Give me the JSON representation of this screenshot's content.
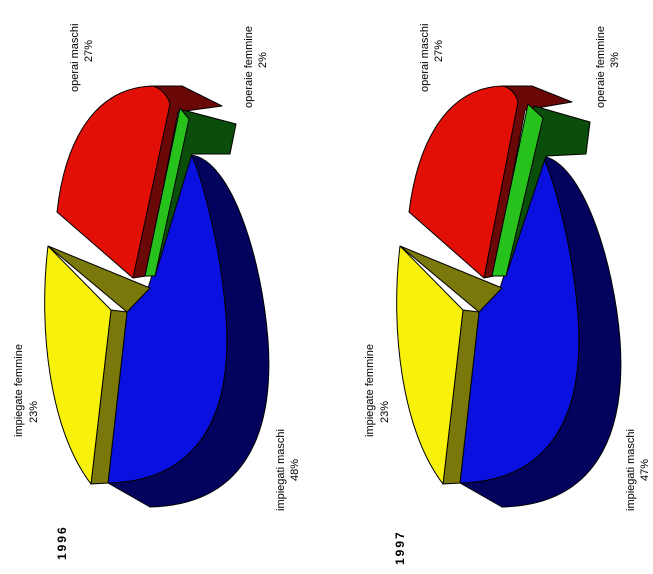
{
  "chart_data": [
    {
      "type": "pie",
      "title": "1996",
      "slices": [
        {
          "label": "impiegati maschi",
          "value": 48,
          "value_label": "48%",
          "color": "#0a10e0",
          "side": "#03035e"
        },
        {
          "label": "impiegate femmine",
          "value": 23,
          "value_label": "23%",
          "color": "#f8f20a",
          "side": "#7a780a"
        },
        {
          "label": "operai maschi",
          "value": 27,
          "value_label": "27%",
          "color": "#e20f06",
          "side": "#6a0707"
        },
        {
          "label": "operaie femmine",
          "value": 2,
          "value_label": "2%",
          "color": "#27c21c",
          "side": "#0b4d0b"
        }
      ]
    },
    {
      "type": "pie",
      "title": "1997",
      "slices": [
        {
          "label": "impiegati maschi",
          "value": 47,
          "value_label": "47%",
          "color": "#0a10e0",
          "side": "#03035e"
        },
        {
          "label": "impiegate femmine",
          "value": 23,
          "value_label": "23%",
          "color": "#f8f20a",
          "side": "#7a780a"
        },
        {
          "label": "operai maschi",
          "value": 27,
          "value_label": "27%",
          "color": "#e20f06",
          "side": "#6a0707"
        },
        {
          "label": "operaie femmine",
          "value": 3,
          "value_label": "3%",
          "color": "#27c21c",
          "side": "#0b4d0b"
        }
      ]
    }
  ]
}
